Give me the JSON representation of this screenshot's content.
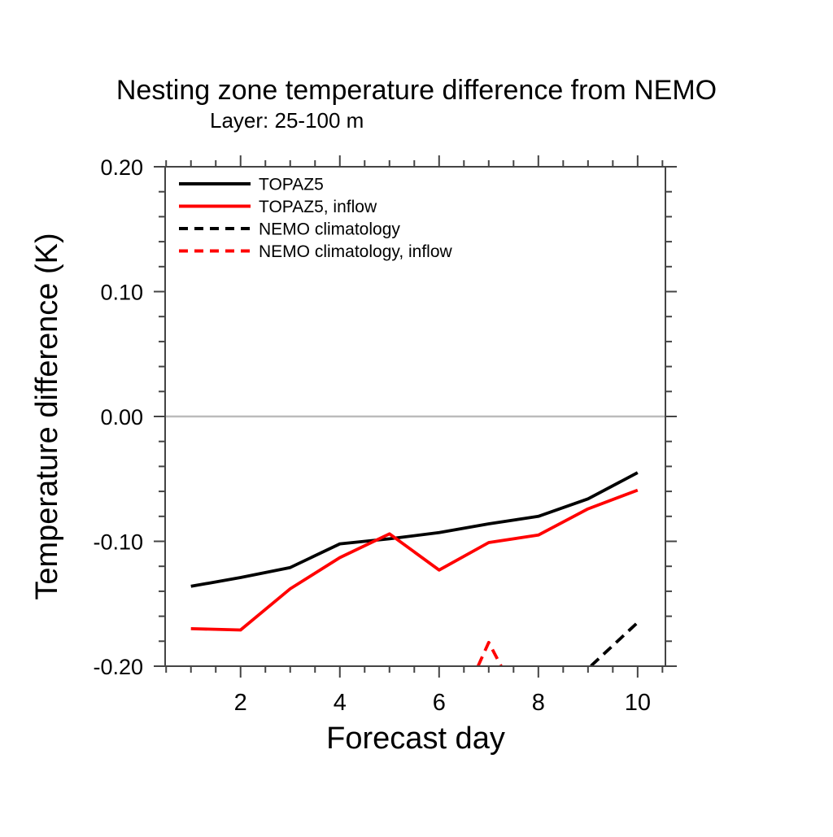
{
  "chart_data": {
    "type": "line",
    "title": "Nesting zone temperature difference from NEMO",
    "subtitle": "Layer: 25-100 m",
    "xlabel": "Forecast day",
    "ylabel": "Temperature difference (K)",
    "x": [
      1,
      2,
      3,
      4,
      5,
      6,
      7,
      8,
      9,
      10
    ],
    "xlim": [
      0.48,
      10.56
    ],
    "ylim": [
      -0.2,
      0.2
    ],
    "x_major_ticks": [
      2,
      4,
      6,
      8,
      10
    ],
    "x_tick_labels": [
      "2",
      "4",
      "6",
      "8",
      "10"
    ],
    "x_minor_step": 0.5,
    "x_minor_start": 0.5,
    "x_minor_end": 10.5,
    "y_major_ticks": [
      0.2,
      0.1,
      0.0,
      -0.1,
      -0.2
    ],
    "y_tick_labels": [
      "0.20",
      "0.10",
      "0.00",
      "-0.10",
      "-0.20"
    ],
    "y_minor_step": 0.02,
    "grid": false,
    "zero_line": true,
    "zero_line_color": "#bbbbbb",
    "axis_color": "#444444",
    "legend_position": "top-left",
    "series": [
      {
        "name": "TOPAZ5",
        "color": "#000000",
        "dash": "solid",
        "values": [
          -0.136,
          -0.129,
          -0.121,
          -0.102,
          -0.098,
          -0.093,
          -0.086,
          -0.08,
          -0.066,
          -0.045
        ]
      },
      {
        "name": "TOPAZ5, inflow",
        "color": "#ff0000",
        "dash": "solid",
        "values": [
          -0.17,
          -0.171,
          -0.138,
          -0.113,
          -0.094,
          -0.123,
          -0.101,
          -0.095,
          -0.074,
          -0.059
        ]
      },
      {
        "name": "NEMO climatology",
        "color": "#000000",
        "dash": "dashed",
        "values": [
          null,
          null,
          null,
          null,
          null,
          null,
          null,
          null,
          -0.202,
          -0.165
        ],
        "offscale_render_points": [
          [
            8,
            -0.27
          ],
          [
            9,
            -0.202
          ],
          [
            10,
            -0.165
          ]
        ],
        "note": "off scale (below -0.20) for days 1-8"
      },
      {
        "name": "NEMO climatology, inflow",
        "color": "#ff0000",
        "dash": "dashed",
        "values": [
          null,
          null,
          null,
          null,
          null,
          null,
          -0.181,
          null,
          null,
          null
        ],
        "offscale_render_points": [
          [
            6.5,
            -0.225
          ],
          [
            7,
            -0.181
          ],
          [
            7.5,
            -0.219
          ]
        ],
        "note": "off scale (below -0.20) except a brief spike around day 7"
      }
    ]
  }
}
